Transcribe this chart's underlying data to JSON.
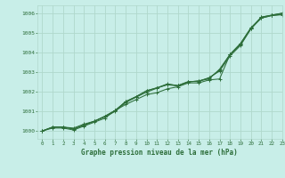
{
  "background_color": "#c8eee8",
  "grid_color": "#b0d8cc",
  "line_color": "#2d6e3a",
  "title": "Graphe pression niveau de la mer (hPa)",
  "xlim": [
    -0.5,
    23
  ],
  "ylim": [
    999.6,
    1006.4
  ],
  "yticks": [
    1000,
    1001,
    1002,
    1003,
    1004,
    1005,
    1006
  ],
  "xticks": [
    0,
    1,
    2,
    3,
    4,
    5,
    6,
    7,
    8,
    9,
    10,
    11,
    12,
    13,
    14,
    15,
    16,
    17,
    18,
    19,
    20,
    21,
    22,
    23
  ],
  "series": [
    [
      1000.0,
      1000.2,
      1000.2,
      1000.1,
      1000.3,
      1000.5,
      1000.75,
      1001.05,
      1001.5,
      1001.75,
      1002.05,
      1002.2,
      1002.4,
      1002.3,
      1002.5,
      1002.55,
      1002.7,
      1003.1,
      1003.9,
      1004.45,
      1005.25,
      1005.8,
      1005.9,
      1006.0
    ],
    [
      1000.0,
      1000.2,
      1000.2,
      1000.1,
      1000.3,
      1000.5,
      1000.75,
      1001.05,
      1001.5,
      1001.75,
      1002.05,
      1002.2,
      1002.35,
      1002.3,
      1002.5,
      1002.55,
      1002.65,
      1003.15,
      1003.9,
      1004.4,
      1005.2,
      1005.8,
      1005.9,
      1006.0
    ],
    [
      1000.0,
      1000.15,
      1000.15,
      1000.05,
      1000.25,
      1000.45,
      1000.65,
      1001.05,
      1001.35,
      1001.6,
      1001.85,
      1001.95,
      1002.15,
      1002.25,
      1002.45,
      1002.45,
      1002.6,
      1002.65,
      1003.9,
      1004.45,
      1005.25,
      1005.75,
      1005.88,
      1005.92
    ],
    [
      1000.0,
      1000.2,
      1000.2,
      1000.15,
      1000.35,
      1000.5,
      1000.72,
      1001.0,
      1001.45,
      1001.72,
      1001.98,
      1002.18,
      1002.38,
      1002.32,
      1002.52,
      1002.52,
      1002.72,
      1003.05,
      1003.82,
      1004.35,
      1005.2,
      1005.75,
      1005.88,
      1005.95
    ]
  ]
}
